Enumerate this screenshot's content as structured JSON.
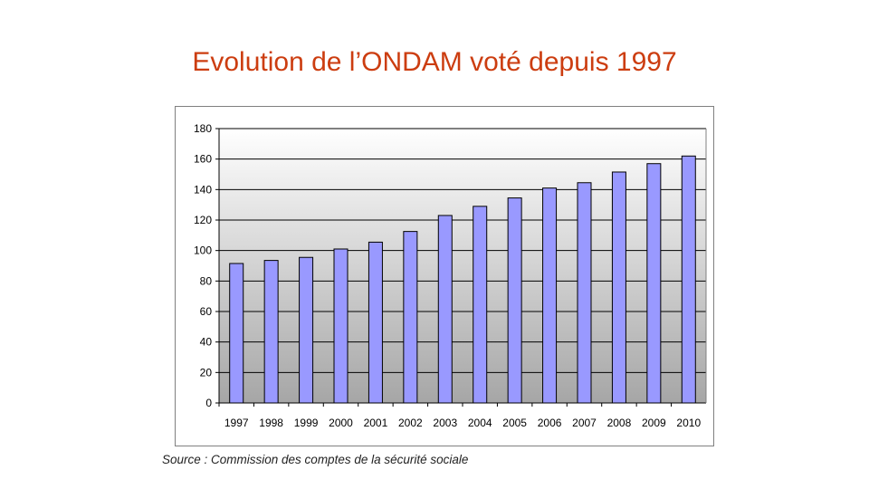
{
  "slide": {
    "title": "Evolution de l’ONDAM voté depuis 1997",
    "source": "Source : Commission des comptes de la sécurité sociale"
  },
  "colors": {
    "title": "#cc3d10",
    "bar_fill": "#9999ff",
    "bar_stroke": "#000000",
    "plot_gradient_top": "#ffffff",
    "plot_gradient_bottom": "#a6a6a6"
  },
  "chart_data": {
    "type": "bar",
    "categories": [
      "1997",
      "1998",
      "1999",
      "2000",
      "2001",
      "2002",
      "2003",
      "2004",
      "2005",
      "2006",
      "2007",
      "2008",
      "2009",
      "2010"
    ],
    "values": [
      91.5,
      93.5,
      95.5,
      101,
      105.5,
      112.5,
      123,
      129,
      134.5,
      141,
      144.5,
      151.5,
      157,
      162
    ],
    "title": "",
    "xlabel": "",
    "ylabel": "",
    "ylim": [
      0,
      180
    ],
    "yticks": [
      0,
      20,
      40,
      60,
      80,
      100,
      120,
      140,
      160,
      180
    ],
    "grid": true,
    "legend": "none"
  }
}
